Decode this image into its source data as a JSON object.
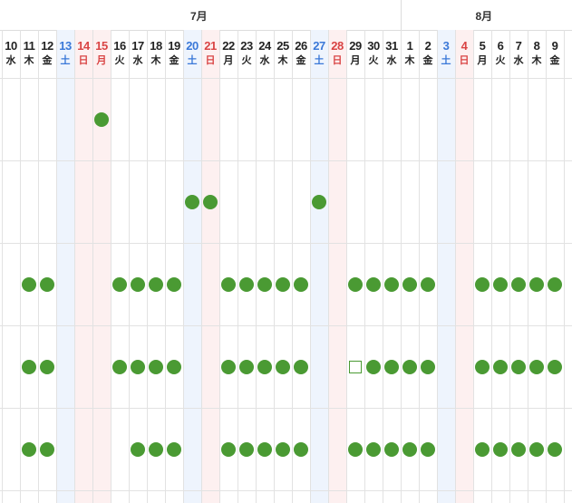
{
  "months": [
    {
      "label": "7月",
      "first_day_index": 0
    },
    {
      "label": "8月",
      "first_day_index": 22
    }
  ],
  "days": [
    {
      "num": "10",
      "wd": "水",
      "type": "weekday"
    },
    {
      "num": "11",
      "wd": "木",
      "type": "weekday"
    },
    {
      "num": "12",
      "wd": "金",
      "type": "weekday"
    },
    {
      "num": "13",
      "wd": "土",
      "type": "sat"
    },
    {
      "num": "14",
      "wd": "日",
      "type": "sun"
    },
    {
      "num": "15",
      "wd": "月",
      "type": "hol"
    },
    {
      "num": "16",
      "wd": "火",
      "type": "weekday"
    },
    {
      "num": "17",
      "wd": "水",
      "type": "weekday"
    },
    {
      "num": "18",
      "wd": "木",
      "type": "weekday"
    },
    {
      "num": "19",
      "wd": "金",
      "type": "weekday"
    },
    {
      "num": "20",
      "wd": "土",
      "type": "sat"
    },
    {
      "num": "21",
      "wd": "日",
      "type": "sun"
    },
    {
      "num": "22",
      "wd": "月",
      "type": "weekday"
    },
    {
      "num": "23",
      "wd": "火",
      "type": "weekday"
    },
    {
      "num": "24",
      "wd": "水",
      "type": "weekday"
    },
    {
      "num": "25",
      "wd": "木",
      "type": "weekday"
    },
    {
      "num": "26",
      "wd": "金",
      "type": "weekday"
    },
    {
      "num": "27",
      "wd": "土",
      "type": "sat"
    },
    {
      "num": "28",
      "wd": "日",
      "type": "sun"
    },
    {
      "num": "29",
      "wd": "月",
      "type": "weekday"
    },
    {
      "num": "30",
      "wd": "火",
      "type": "weekday"
    },
    {
      "num": "31",
      "wd": "水",
      "type": "weekday"
    },
    {
      "num": "1",
      "wd": "木",
      "type": "weekday"
    },
    {
      "num": "2",
      "wd": "金",
      "type": "weekday"
    },
    {
      "num": "3",
      "wd": "土",
      "type": "sat"
    },
    {
      "num": "4",
      "wd": "日",
      "type": "sun"
    },
    {
      "num": "5",
      "wd": "月",
      "type": "weekday"
    },
    {
      "num": "6",
      "wd": "火",
      "type": "weekday"
    },
    {
      "num": "7",
      "wd": "水",
      "type": "weekday"
    },
    {
      "num": "8",
      "wd": "木",
      "type": "weekday"
    },
    {
      "num": "9",
      "wd": "金",
      "type": "weekday"
    }
  ],
  "rows": [
    {
      "marks": {
        "15": "dot"
      }
    },
    {
      "marks": {
        "20": "dot",
        "21": "dot",
        "27": "dot"
      }
    },
    {
      "marks": {
        "11": "dot",
        "12": "dot",
        "16": "dot",
        "17": "dot",
        "18": "dot",
        "19": "dot",
        "22": "dot",
        "23": "dot",
        "24": "dot",
        "25": "dot",
        "26": "dot",
        "29": "dot",
        "30": "dot",
        "31": "dot",
        "1": "dot",
        "2": "dot",
        "5": "dot",
        "6": "dot",
        "7": "dot",
        "8": "dot",
        "9": "dot"
      }
    },
    {
      "marks": {
        "11": "dot",
        "12": "dot",
        "16": "dot",
        "17": "dot",
        "18": "dot",
        "19": "dot",
        "22": "dot",
        "23": "dot",
        "24": "dot",
        "25": "dot",
        "26": "dot",
        "29": "square",
        "30": "dot",
        "31": "dot",
        "1": "dot",
        "2": "dot",
        "5": "dot",
        "6": "dot",
        "7": "dot",
        "8": "dot",
        "9": "dot"
      }
    },
    {
      "marks": {
        "11": "dot",
        "12": "dot",
        "17": "dot",
        "18": "dot",
        "19": "dot",
        "22": "dot",
        "23": "dot",
        "24": "dot",
        "25": "dot",
        "26": "dot",
        "29": "dot",
        "30": "dot",
        "31": "dot",
        "1": "dot",
        "2": "dot",
        "5": "dot",
        "6": "dot",
        "7": "dot",
        "8": "dot",
        "9": "dot"
      }
    }
  ],
  "legend": {
    "dot": "filled-green-circle",
    "square": "outlined-green-square"
  },
  "colors": {
    "mark_green": "#4a9a33",
    "saturday_text": "#3a78d8",
    "sunday_text": "#d94444",
    "saturday_bg": "#eef4fd",
    "sunday_bg": "#fdf0f0"
  }
}
